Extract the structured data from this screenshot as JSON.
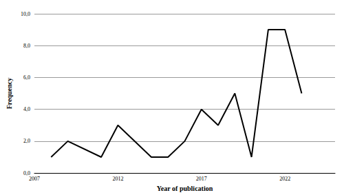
{
  "chart_data": {
    "type": "line",
    "x_label": "Year of publication",
    "y_label": "Frequency",
    "x": [
      2008,
      2009,
      2011,
      2012,
      2014,
      2015,
      2016,
      2017,
      2018,
      2019,
      2020,
      2021,
      2022,
      2023
    ],
    "values": [
      1,
      2,
      1,
      3,
      1,
      1,
      2,
      4,
      3,
      5,
      1,
      9,
      9,
      5
    ],
    "color": "#000000",
    "xlim": [
      2007,
      2025
    ],
    "xticks": [
      2007,
      2012,
      2017,
      2022
    ],
    "ylim": [
      0,
      10
    ],
    "yticks": [
      {
        "value": 0,
        "label": "0,0"
      },
      {
        "value": 2,
        "label": "2,0"
      },
      {
        "value": 4,
        "label": "4,0"
      },
      {
        "value": 6,
        "label": "6,0"
      },
      {
        "value": 8,
        "label": "8,0"
      },
      {
        "value": 10,
        "label": "10,0"
      }
    ],
    "grid": true
  }
}
